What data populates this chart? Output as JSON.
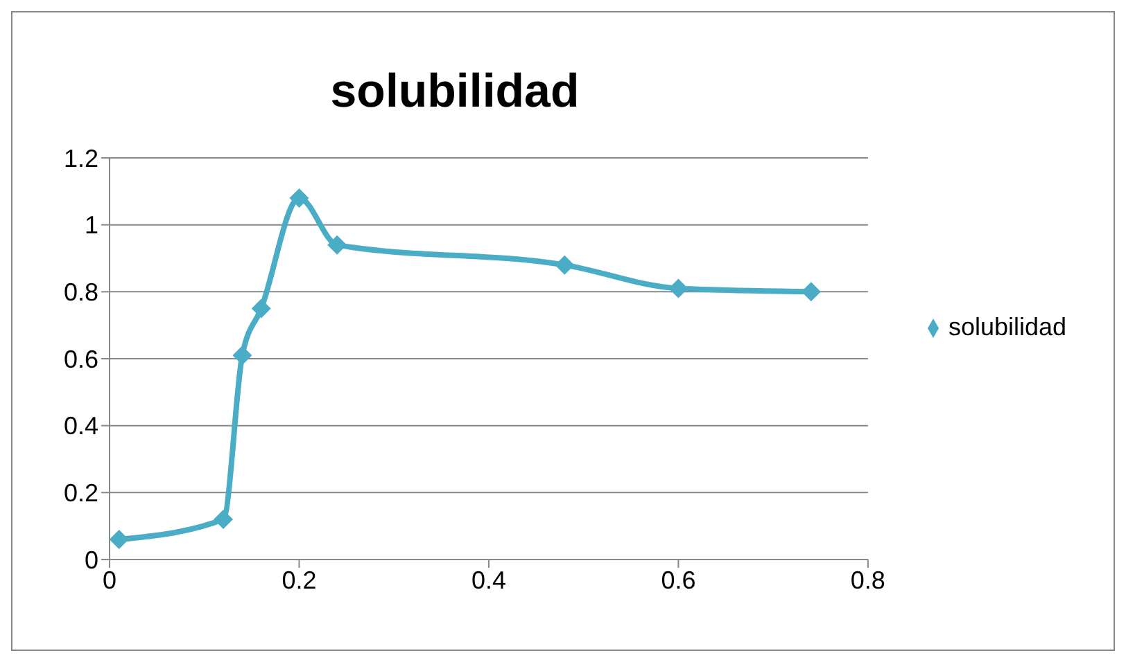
{
  "chart_data": {
    "type": "line",
    "title": "solubilidad",
    "x": [
      0.01,
      0.12,
      0.14,
      0.16,
      0.2,
      0.24,
      0.48,
      0.6,
      0.74
    ],
    "series": [
      {
        "name": "solubilidad",
        "color": "#4bacc6",
        "values": [
          0.06,
          0.12,
          0.61,
          0.75,
          1.08,
          0.94,
          0.88,
          0.81,
          0.8
        ]
      }
    ],
    "xlim": [
      0,
      0.8
    ],
    "xticks": [
      0,
      0.2,
      0.4,
      0.6,
      0.8
    ],
    "ylim": [
      0,
      1.2
    ],
    "yticks": [
      0,
      0.2,
      0.4,
      0.6,
      0.8,
      1,
      1.2
    ],
    "grid": "y",
    "legend": "right",
    "marker": "diamond",
    "line_style": "solid"
  }
}
